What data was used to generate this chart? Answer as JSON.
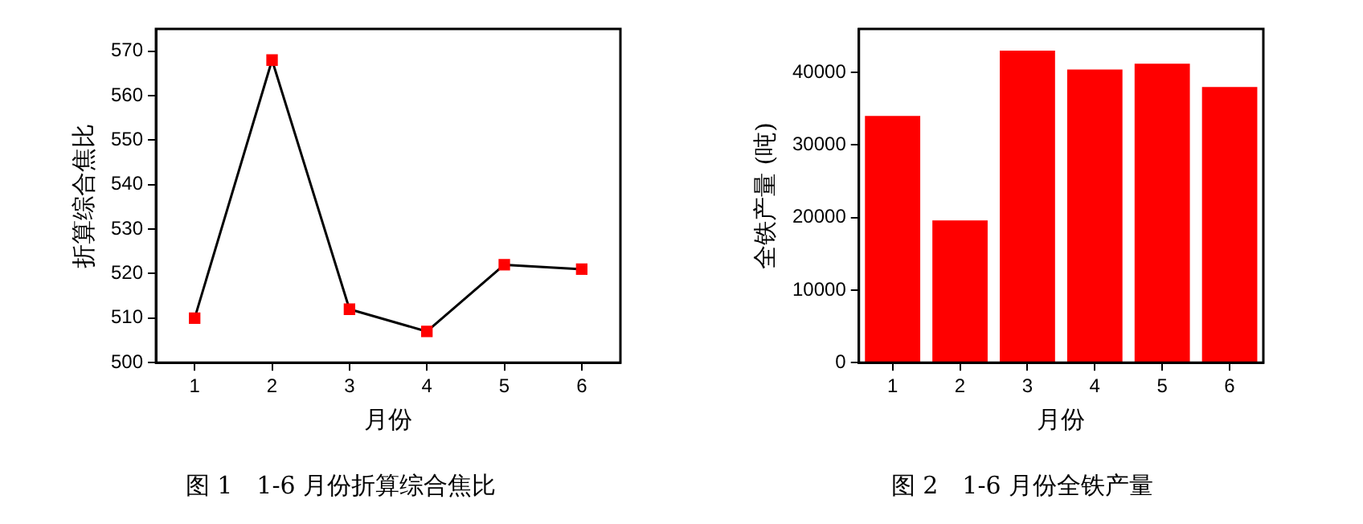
{
  "chart_data": [
    {
      "type": "line",
      "title": "图 1　1-6 月份折算综合焦比",
      "xlabel": "月份",
      "ylabel": "折算综合焦比",
      "x": [
        1,
        2,
        3,
        4,
        5,
        6
      ],
      "xlim": [
        0.5,
        6.5
      ],
      "xticks": [
        1,
        2,
        3,
        4,
        5,
        6
      ],
      "ylim": [
        500,
        575
      ],
      "yticks": [
        500,
        510,
        520,
        530,
        540,
        550,
        560,
        570
      ],
      "marker": "square",
      "grid": false,
      "legend": false,
      "series": [
        {
          "color": "#000000",
          "colors": [
            "#ff0000",
            "#ff0000",
            "#ff0000",
            "#ff0000",
            "#ff0000",
            "#ff0000"
          ],
          "values": [
            510,
            568,
            512,
            507,
            522,
            521
          ]
        }
      ]
    },
    {
      "type": "bar",
      "title": "图 2　1-6 月份全铁产量",
      "xlabel": "月份",
      "ylabel": "全铁产量 (吨)",
      "categories": [
        "1",
        "2",
        "3",
        "4",
        "5",
        "6"
      ],
      "ylim": [
        0,
        46000
      ],
      "yticks": [
        0,
        10000,
        20000,
        30000,
        40000
      ],
      "grid": false,
      "legend": false,
      "series": [
        {
          "color": "#ff0000",
          "values": [
            34000,
            19600,
            43000,
            40400,
            41200,
            38000
          ]
        }
      ]
    }
  ]
}
